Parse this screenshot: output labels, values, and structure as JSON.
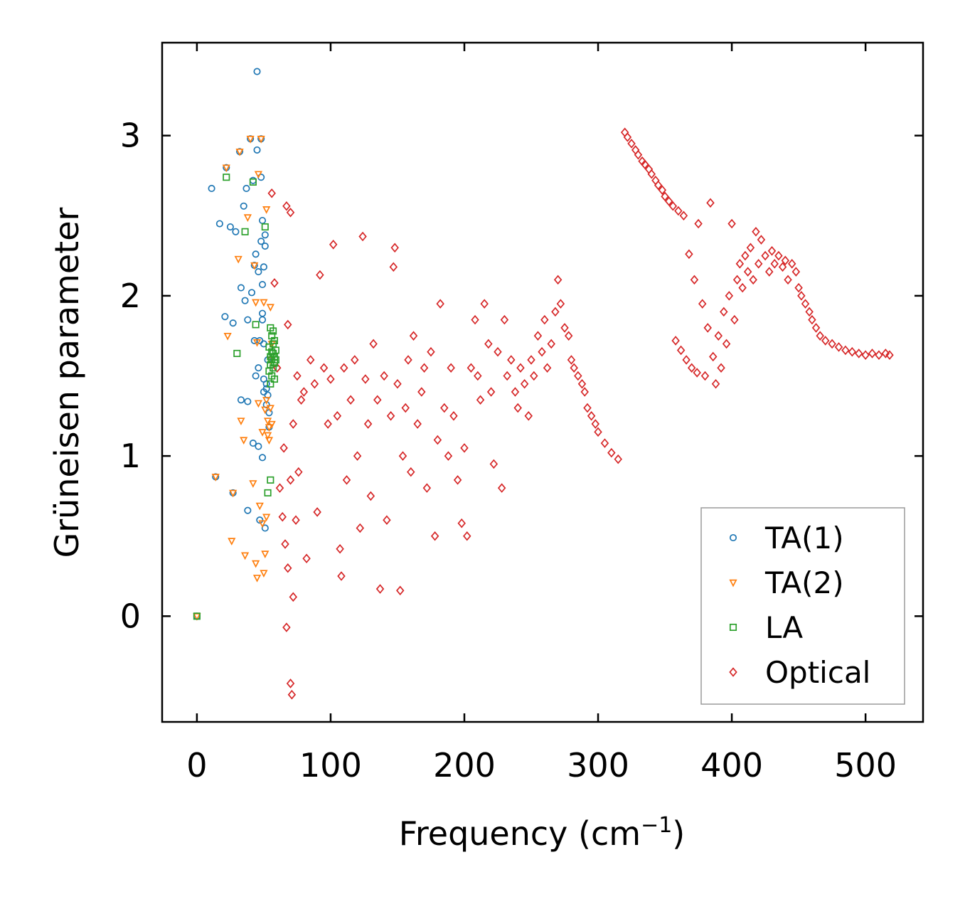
{
  "chart_data": {
    "type": "scatter",
    "title": "",
    "xlabel": "Frequency (cm",
    "xlabel_sup": "−1",
    "xlabel_close": ")",
    "ylabel": "Grüneisen parameter",
    "xlim": [
      -26,
      543
    ],
    "ylim": [
      -0.66,
      3.58
    ],
    "xticks": [
      0,
      100,
      200,
      300,
      400,
      500
    ],
    "yticks": [
      0,
      1,
      2,
      3
    ],
    "xtick_labels": [
      "0",
      "100",
      "200",
      "300",
      "400",
      "500"
    ],
    "ytick_labels": [
      "0",
      "1",
      "2",
      "3"
    ],
    "grid": false,
    "legend_position": "bottom-right",
    "series": [
      {
        "name": "TA(1)",
        "marker": "circle",
        "color": "#1f77b4",
        "points": [
          [
            0,
            0
          ],
          [
            11,
            2.67
          ],
          [
            14,
            0.87
          ],
          [
            17,
            2.45
          ],
          [
            21,
            1.87
          ],
          [
            22,
            2.8
          ],
          [
            25,
            2.43
          ],
          [
            27,
            1.83
          ],
          [
            27,
            0.77
          ],
          [
            29,
            2.4
          ],
          [
            32,
            2.9
          ],
          [
            33,
            1.35
          ],
          [
            33,
            2.05
          ],
          [
            35,
            2.56
          ],
          [
            36,
            1.97
          ],
          [
            37,
            2.67
          ],
          [
            38,
            0.66
          ],
          [
            38,
            1.85
          ],
          [
            38,
            1.34
          ],
          [
            40,
            2.98
          ],
          [
            41,
            2.02
          ],
          [
            42,
            2.72
          ],
          [
            42,
            1.08
          ],
          [
            43,
            1.72
          ],
          [
            43,
            2.19
          ],
          [
            44,
            1.5
          ],
          [
            44,
            2.26
          ],
          [
            45,
            2.91
          ],
          [
            45,
            3.4
          ],
          [
            46,
            1.55
          ],
          [
            46,
            2.15
          ],
          [
            46,
            1.06
          ],
          [
            47,
            0.6
          ],
          [
            47,
            1.72
          ],
          [
            48,
            2.74
          ],
          [
            48,
            2.34
          ],
          [
            48,
            2.98
          ],
          [
            49,
            2.47
          ],
          [
            49,
            2.07
          ],
          [
            49,
            1.85
          ],
          [
            49,
            1.89
          ],
          [
            49,
            0.99
          ],
          [
            50,
            1.48
          ],
          [
            50,
            1.4
          ],
          [
            50,
            2.18
          ],
          [
            50,
            1.7
          ],
          [
            51,
            2.31
          ],
          [
            51,
            2.38
          ],
          [
            51,
            0.55
          ],
          [
            52,
            1.45
          ],
          [
            52,
            1.42
          ],
          [
            52,
            1.32
          ],
          [
            53,
            1.6
          ],
          [
            53,
            1.38
          ],
          [
            54,
            1.27
          ],
          [
            54,
            1.18
          ]
        ]
      },
      {
        "name": "TA(2)",
        "marker": "triangle-down",
        "color": "#ff7f0e",
        "points": [
          [
            0,
            0
          ],
          [
            14,
            0.87
          ],
          [
            22,
            2.8
          ],
          [
            23,
            1.75
          ],
          [
            26,
            0.47
          ],
          [
            27,
            0.77
          ],
          [
            32,
            2.9
          ],
          [
            31,
            2.23
          ],
          [
            33,
            1.22
          ],
          [
            35,
            1.1
          ],
          [
            36,
            0.38
          ],
          [
            38,
            2.49
          ],
          [
            40,
            2.98
          ],
          [
            42,
            0.83
          ],
          [
            43,
            2.19
          ],
          [
            44,
            1.96
          ],
          [
            44,
            0.33
          ],
          [
            45,
            1.71
          ],
          [
            45,
            0.24
          ],
          [
            46,
            2.76
          ],
          [
            46,
            1.33
          ],
          [
            47,
            0.69
          ],
          [
            48,
            2.98
          ],
          [
            49,
            1.15
          ],
          [
            49,
            0.58
          ],
          [
            50,
            1.96
          ],
          [
            50,
            0.27
          ],
          [
            51,
            1.29
          ],
          [
            51,
            0.39
          ],
          [
            52,
            2.54
          ],
          [
            52,
            1.35
          ],
          [
            52,
            0.62
          ],
          [
            53,
            1.13
          ],
          [
            53,
            1.22
          ],
          [
            54,
            1.18
          ],
          [
            54,
            1.1
          ],
          [
            55,
            1.93
          ],
          [
            55,
            1.6
          ],
          [
            55,
            1.3
          ],
          [
            56,
            1.2
          ],
          [
            56,
            1.7
          ]
        ]
      },
      {
        "name": "LA",
        "marker": "square",
        "color": "#2ca02c",
        "points": [
          [
            0,
            0
          ],
          [
            22,
            2.74
          ],
          [
            30,
            1.64
          ],
          [
            36,
            2.4
          ],
          [
            42,
            2.71
          ],
          [
            44,
            1.82
          ],
          [
            51,
            2.43
          ],
          [
            53,
            0.77
          ],
          [
            54,
            1.53
          ],
          [
            54,
            1.68
          ],
          [
            55,
            1.57
          ],
          [
            55,
            1.8
          ],
          [
            55,
            1.45
          ],
          [
            55,
            1.62
          ],
          [
            55,
            0.85
          ],
          [
            56,
            1.75
          ],
          [
            56,
            1.65
          ],
          [
            56,
            1.5
          ],
          [
            56,
            1.6
          ],
          [
            57,
            1.78
          ],
          [
            57,
            1.64
          ],
          [
            57,
            1.55
          ],
          [
            57,
            1.7
          ],
          [
            58,
            1.62
          ],
          [
            58,
            1.72
          ],
          [
            58,
            1.58
          ],
          [
            58,
            1.48
          ],
          [
            59,
            1.66
          ],
          [
            59,
            1.6
          ]
        ]
      },
      {
        "name": "Optical",
        "marker": "diamond",
        "color": "#d62728",
        "points": [
          [
            56,
            2.64
          ],
          [
            58,
            2.08
          ],
          [
            60,
            1.55
          ],
          [
            62,
            0.8
          ],
          [
            64,
            0.62
          ],
          [
            65,
            1.05
          ],
          [
            66,
            0.45
          ],
          [
            67,
            2.56
          ],
          [
            67,
            -0.07
          ],
          [
            68,
            0.3
          ],
          [
            68,
            1.82
          ],
          [
            70,
            -0.42
          ],
          [
            70,
            2.52
          ],
          [
            70,
            0.85
          ],
          [
            71,
            -0.49
          ],
          [
            72,
            0.12
          ],
          [
            72,
            1.2
          ],
          [
            74,
            0.6
          ],
          [
            75,
            1.5
          ],
          [
            76,
            0.9
          ],
          [
            78,
            1.35
          ],
          [
            80,
            1.4
          ],
          [
            82,
            0.36
          ],
          [
            85,
            1.6
          ],
          [
            88,
            1.45
          ],
          [
            90,
            0.65
          ],
          [
            92,
            2.13
          ],
          [
            95,
            1.55
          ],
          [
            98,
            1.2
          ],
          [
            100,
            1.48
          ],
          [
            102,
            2.32
          ],
          [
            105,
            1.25
          ],
          [
            107,
            0.42
          ],
          [
            108,
            0.25
          ],
          [
            110,
            1.55
          ],
          [
            112,
            0.85
          ],
          [
            115,
            1.35
          ],
          [
            118,
            1.6
          ],
          [
            120,
            1.0
          ],
          [
            122,
            0.55
          ],
          [
            124,
            2.37
          ],
          [
            126,
            1.48
          ],
          [
            128,
            1.2
          ],
          [
            130,
            0.75
          ],
          [
            132,
            1.7
          ],
          [
            135,
            1.35
          ],
          [
            137,
            0.17
          ],
          [
            140,
            1.5
          ],
          [
            142,
            0.6
          ],
          [
            145,
            1.25
          ],
          [
            147,
            2.18
          ],
          [
            148,
            2.3
          ],
          [
            150,
            1.45
          ],
          [
            152,
            0.16
          ],
          [
            154,
            1.0
          ],
          [
            156,
            1.3
          ],
          [
            158,
            1.6
          ],
          [
            160,
            0.9
          ],
          [
            162,
            1.75
          ],
          [
            165,
            1.2
          ],
          [
            168,
            1.4
          ],
          [
            170,
            1.55
          ],
          [
            172,
            0.8
          ],
          [
            175,
            1.65
          ],
          [
            178,
            0.5
          ],
          [
            180,
            1.1
          ],
          [
            182,
            1.95
          ],
          [
            185,
            1.3
          ],
          [
            188,
            1.0
          ],
          [
            190,
            1.55
          ],
          [
            192,
            1.25
          ],
          [
            195,
            0.85
          ],
          [
            198,
            0.58
          ],
          [
            200,
            1.05
          ],
          [
            202,
            0.5
          ],
          [
            205,
            1.55
          ],
          [
            208,
            1.85
          ],
          [
            210,
            1.5
          ],
          [
            212,
            1.35
          ],
          [
            215,
            1.95
          ],
          [
            218,
            1.7
          ],
          [
            220,
            1.4
          ],
          [
            222,
            0.95
          ],
          [
            225,
            1.65
          ],
          [
            228,
            0.8
          ],
          [
            230,
            1.85
          ],
          [
            232,
            1.5
          ],
          [
            235,
            1.6
          ],
          [
            238,
            1.4
          ],
          [
            240,
            1.3
          ],
          [
            242,
            1.55
          ],
          [
            245,
            1.45
          ],
          [
            248,
            1.25
          ],
          [
            250,
            1.6
          ],
          [
            252,
            1.5
          ],
          [
            255,
            1.75
          ],
          [
            258,
            1.65
          ],
          [
            260,
            1.85
          ],
          [
            262,
            1.55
          ],
          [
            265,
            1.7
          ],
          [
            268,
            1.9
          ],
          [
            270,
            2.1
          ],
          [
            272,
            1.95
          ],
          [
            275,
            1.8
          ],
          [
            278,
            1.75
          ],
          [
            280,
            1.6
          ],
          [
            282,
            1.55
          ],
          [
            285,
            1.5
          ],
          [
            288,
            1.45
          ],
          [
            290,
            1.4
          ],
          [
            292,
            1.3
          ],
          [
            295,
            1.25
          ],
          [
            298,
            1.2
          ],
          [
            300,
            1.15
          ],
          [
            305,
            1.08
          ],
          [
            310,
            1.02
          ],
          [
            315,
            0.98
          ],
          [
            320,
            3.02
          ],
          [
            322,
            2.99
          ],
          [
            325,
            2.95
          ],
          [
            328,
            2.91
          ],
          [
            330,
            2.88
          ],
          [
            333,
            2.84
          ],
          [
            335,
            2.82
          ],
          [
            338,
            2.79
          ],
          [
            340,
            2.76
          ],
          [
            343,
            2.72
          ],
          [
            345,
            2.69
          ],
          [
            348,
            2.66
          ],
          [
            350,
            2.62
          ],
          [
            353,
            2.59
          ],
          [
            356,
            2.56
          ],
          [
            358,
            1.72
          ],
          [
            360,
            2.53
          ],
          [
            362,
            1.66
          ],
          [
            364,
            2.5
          ],
          [
            366,
            1.6
          ],
          [
            368,
            2.26
          ],
          [
            370,
            1.55
          ],
          [
            372,
            2.1
          ],
          [
            374,
            1.52
          ],
          [
            375,
            2.45
          ],
          [
            378,
            1.95
          ],
          [
            380,
            1.5
          ],
          [
            382,
            1.8
          ],
          [
            384,
            2.58
          ],
          [
            386,
            1.62
          ],
          [
            388,
            1.45
          ],
          [
            390,
            1.75
          ],
          [
            392,
            1.55
          ],
          [
            394,
            1.9
          ],
          [
            396,
            1.7
          ],
          [
            398,
            2.0
          ],
          [
            400,
            2.45
          ],
          [
            402,
            1.85
          ],
          [
            404,
            2.1
          ],
          [
            406,
            2.2
          ],
          [
            408,
            2.05
          ],
          [
            410,
            2.25
          ],
          [
            412,
            2.15
          ],
          [
            414,
            2.3
          ],
          [
            416,
            2.1
          ],
          [
            418,
            2.4
          ],
          [
            420,
            2.2
          ],
          [
            422,
            2.35
          ],
          [
            425,
            2.25
          ],
          [
            428,
            2.15
          ],
          [
            430,
            2.28
          ],
          [
            432,
            2.2
          ],
          [
            435,
            2.25
          ],
          [
            438,
            2.18
          ],
          [
            440,
            2.22
          ],
          [
            442,
            2.1
          ],
          [
            445,
            2.2
          ],
          [
            448,
            2.15
          ],
          [
            450,
            2.05
          ],
          [
            452,
            2.0
          ],
          [
            455,
            1.95
          ],
          [
            458,
            1.9
          ],
          [
            460,
            1.85
          ],
          [
            463,
            1.8
          ],
          [
            466,
            1.75
          ],
          [
            470,
            1.72
          ],
          [
            475,
            1.7
          ],
          [
            480,
            1.68
          ],
          [
            485,
            1.66
          ],
          [
            490,
            1.65
          ],
          [
            495,
            1.64
          ],
          [
            500,
            1.63
          ],
          [
            505,
            1.64
          ],
          [
            510,
            1.63
          ],
          [
            515,
            1.64
          ],
          [
            518,
            1.63
          ]
        ]
      }
    ],
    "legend": [
      "TA(1)",
      "TA(2)",
      "LA",
      "Optical"
    ]
  }
}
